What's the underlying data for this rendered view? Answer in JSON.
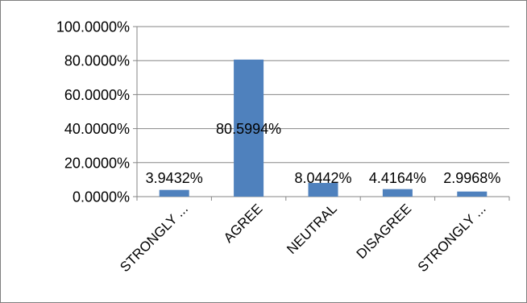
{
  "chart_data": {
    "type": "bar",
    "title": "",
    "xlabel": "",
    "ylabel": "",
    "categories": [
      "STRONGLY ...",
      "AGREE",
      "NEUTRAL",
      "DISAGREE",
      "STRONGLY ..."
    ],
    "values": [
      3.9432,
      80.5994,
      8.0442,
      4.4164,
      2.9968
    ],
    "data_labels": [
      "3.9432%",
      "80.5994%",
      "8.0442%",
      "4.4164%",
      "2.9968%"
    ],
    "ylim": [
      0,
      100
    ],
    "yticks": [
      0,
      20,
      40,
      60,
      80,
      100
    ],
    "ytick_labels": [
      "0.0000%",
      "20.0000%",
      "40.0000%",
      "60.0000%",
      "80.0000%",
      "100.0000%"
    ],
    "grid": true,
    "legend": "none",
    "colors": {
      "bar": "#4f81bd",
      "grid": "#868686",
      "axis": "#868686"
    }
  }
}
